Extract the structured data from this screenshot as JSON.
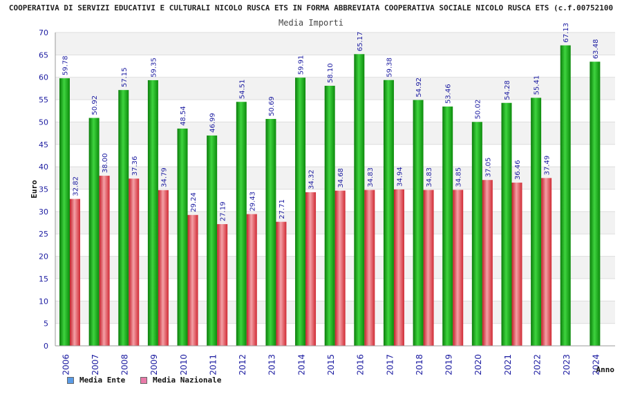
{
  "chart_data": {
    "type": "bar",
    "title": "COOPERATIVA DI SERVIZI EDUCATIVI E CULTURALI NICOLO RUSCA ETS IN FORMA ABBREVIATA COOPERATIVA SOCIALE NICOLO RUSCA ETS (c.f.00752100",
    "subtitle": "Media Importi",
    "xlabel": "Anno",
    "ylabel": "Euro",
    "ylim": [
      0,
      70
    ],
    "yticks": [
      0,
      5,
      10,
      15,
      20,
      25,
      30,
      35,
      40,
      45,
      50,
      55,
      60,
      65,
      70
    ],
    "grid": true,
    "legend_position": "bottom-left",
    "categories": [
      "2006",
      "2007",
      "2008",
      "2009",
      "2010",
      "2011",
      "2012",
      "2013",
      "2014",
      "2015",
      "2016",
      "2017",
      "2018",
      "2019",
      "2020",
      "2021",
      "2022",
      "2023",
      "2024"
    ],
    "series": [
      {
        "name": "Media Ente",
        "color": "#1fb51f",
        "legend_color": "#5a9be6",
        "values": [
          59.78,
          50.92,
          57.15,
          59.35,
          48.54,
          46.99,
          54.51,
          50.69,
          59.91,
          58.1,
          65.17,
          59.38,
          54.92,
          53.46,
          50.02,
          54.28,
          55.41,
          67.13,
          63.48
        ],
        "labels": [
          "59.78",
          "50.92",
          "57.15",
          "59.35",
          "48.54",
          "46.99",
          "54.51",
          "50.69",
          "59.91",
          "58.10",
          "65.17",
          "59.38",
          "54.92",
          "53.46",
          "50.02",
          "54.28",
          "55.41",
          "67.13",
          "63.48"
        ]
      },
      {
        "name": "Media Nazionale",
        "color": "#e8424a",
        "legend_color": "#e87aa8",
        "values": [
          32.82,
          38.0,
          37.36,
          34.79,
          29.24,
          27.19,
          29.43,
          27.71,
          34.32,
          34.68,
          34.83,
          34.94,
          34.83,
          34.85,
          37.05,
          36.46,
          37.49,
          null,
          null
        ],
        "labels": [
          "32.82",
          "38.00",
          "37.36",
          "34.79",
          "29.24",
          "27.19",
          "29.43",
          "27.71",
          "34.32",
          "34.68",
          "34.83",
          "34.94",
          "34.83",
          "34.85",
          "37.05",
          "36.46",
          "37.49",
          "",
          ""
        ]
      }
    ]
  }
}
